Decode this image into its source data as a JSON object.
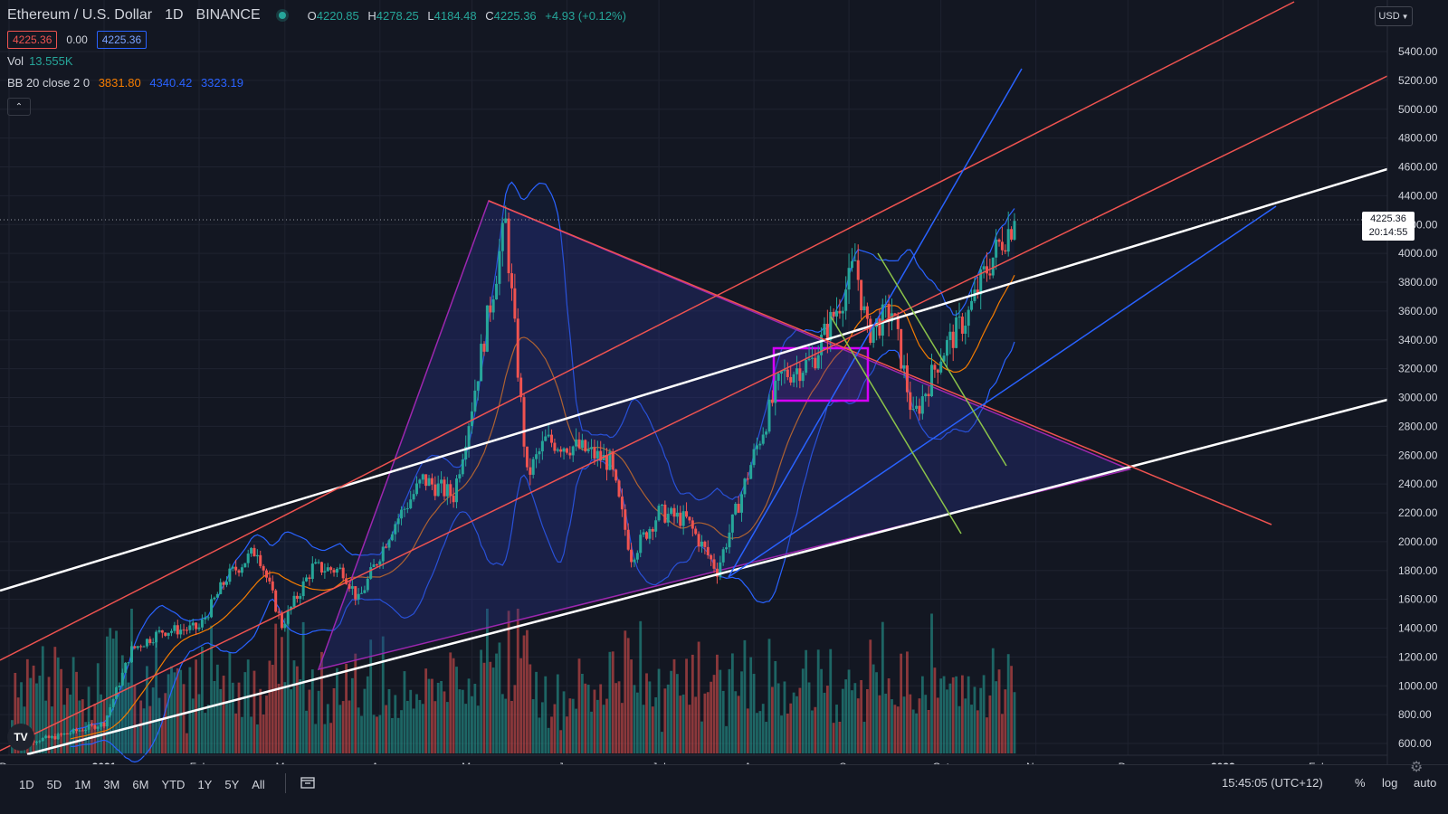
{
  "header": {
    "symbol": "Ethereum / U.S. Dollar",
    "interval": "1D",
    "exchange": "BINANCE",
    "ohlc": {
      "o_label": "O",
      "o": "4220.85",
      "h_label": "H",
      "h": "4278.25",
      "l_label": "L",
      "l": "4184.48",
      "c_label": "C",
      "c": "4225.36",
      "change": "+4.93 (+0.12%)"
    },
    "bid": "4225.36",
    "spread": "0.00",
    "ask": "4225.36",
    "volume_label": "Vol",
    "volume_value": "13.555K",
    "bb_label": "BB 20 close 2 0",
    "bb_basis": "3831.80",
    "bb_upper": "4340.42",
    "bb_lower": "3323.19",
    "collapse_icon": "chevron-up-icon"
  },
  "price_axis": {
    "currency": "USD",
    "last_price": "4225.36",
    "countdown": "20:14:55"
  },
  "time_axis": {
    "labels": [
      "Dec",
      "2021",
      "Feb",
      "Mar",
      "Apr",
      "May",
      "Jun",
      "Jul",
      "Aug",
      "Sep",
      "Oct",
      "Nov",
      "Dec",
      "2022",
      "Feb"
    ]
  },
  "bottom_bar": {
    "ranges": [
      "1D",
      "5D",
      "1M",
      "3M",
      "6M",
      "YTD",
      "1Y",
      "5Y",
      "All"
    ],
    "time": "15:45:05 (UTC+12)",
    "percent": "%",
    "log": "log",
    "auto": "auto",
    "compare_icon": "calendar-range-icon",
    "settings_icon": "gear-icon"
  },
  "logo": "TV",
  "colors": {
    "background": "#131722",
    "up": "#26a69a",
    "down": "#ef5350",
    "bb_basis": "#f57c00",
    "bb_band": "#2962ff",
    "channel_white": "#ffffff",
    "channel_red": "#ef5350",
    "trend_blue": "#2962ff",
    "trend_green": "#8bc34a",
    "triangle": "#9c27b0",
    "rect": "#d500f9"
  },
  "chart_data": {
    "type": "candlestick",
    "title": "Ethereum / U.S. Dollar",
    "interval": "1D",
    "yrange": [
      500,
      6100
    ],
    "yticks": [
      600,
      800,
      1000,
      1200,
      1400,
      1600,
      1800,
      2000,
      2200,
      2400,
      2600,
      2800,
      3000,
      3200,
      3400,
      3600,
      3800,
      4000,
      4200,
      4400,
      4600,
      4800,
      5000,
      5200,
      5400
    ],
    "xrange": [
      "2020-12-01",
      "2022-03-01"
    ],
    "series_candles": [
      {
        "date": "2020-12-01",
        "close": 600
      },
      {
        "date": "2020-12-15",
        "close": 640
      },
      {
        "date": "2021-01-01",
        "close": 740
      },
      {
        "date": "2021-01-10",
        "close": 1250
      },
      {
        "date": "2021-01-20",
        "close": 1380
      },
      {
        "date": "2021-02-01",
        "close": 1400
      },
      {
        "date": "2021-02-10",
        "close": 1750
      },
      {
        "date": "2021-02-20",
        "close": 1950
      },
      {
        "date": "2021-02-28",
        "close": 1420
      },
      {
        "date": "2021-03-10",
        "close": 1820
      },
      {
        "date": "2021-03-20",
        "close": 1800
      },
      {
        "date": "2021-03-25",
        "close": 1590
      },
      {
        "date": "2021-04-05",
        "close": 2100
      },
      {
        "date": "2021-04-15",
        "close": 2430
      },
      {
        "date": "2021-04-25",
        "close": 2320
      },
      {
        "date": "2021-05-01",
        "close": 2950
      },
      {
        "date": "2021-05-10",
        "close": 4000
      },
      {
        "date": "2021-05-12",
        "close": 4200
      },
      {
        "date": "2021-05-19",
        "close": 2450
      },
      {
        "date": "2021-05-25",
        "close": 2700
      },
      {
        "date": "2021-06-05",
        "close": 2650
      },
      {
        "date": "2021-06-15",
        "close": 2550
      },
      {
        "date": "2021-06-22",
        "close": 1900
      },
      {
        "date": "2021-07-01",
        "close": 2200
      },
      {
        "date": "2021-07-10",
        "close": 2150
      },
      {
        "date": "2021-07-20",
        "close": 1800
      },
      {
        "date": "2021-08-01",
        "close": 2600
      },
      {
        "date": "2021-08-10",
        "close": 3150
      },
      {
        "date": "2021-08-20",
        "close": 3250
      },
      {
        "date": "2021-09-01",
        "close": 3800
      },
      {
        "date": "2021-09-03",
        "close": 3950
      },
      {
        "date": "2021-09-07",
        "close": 3450
      },
      {
        "date": "2021-09-15",
        "close": 3600
      },
      {
        "date": "2021-09-22",
        "close": 2850
      },
      {
        "date": "2021-10-01",
        "close": 3300
      },
      {
        "date": "2021-10-10",
        "close": 3580
      },
      {
        "date": "2021-10-15",
        "close": 3850
      },
      {
        "date": "2021-10-21",
        "close": 4100
      },
      {
        "date": "2021-10-25",
        "close": 4225.36
      }
    ],
    "series_volume_k": [
      {
        "date": "2021-01-10",
        "value": 800
      },
      {
        "date": "2021-02-20",
        "value": 650
      },
      {
        "date": "2021-05-12",
        "value": 900
      },
      {
        "date": "2021-05-19",
        "value": 1050
      },
      {
        "date": "2021-09-07",
        "value": 480
      },
      {
        "date": "2021-10-25",
        "value": 13.555
      }
    ],
    "indicators": [
      {
        "name": "BB 20 close 2 0",
        "basis": 3831.8,
        "upper": 4340.42,
        "lower": 3323.19
      }
    ]
  }
}
